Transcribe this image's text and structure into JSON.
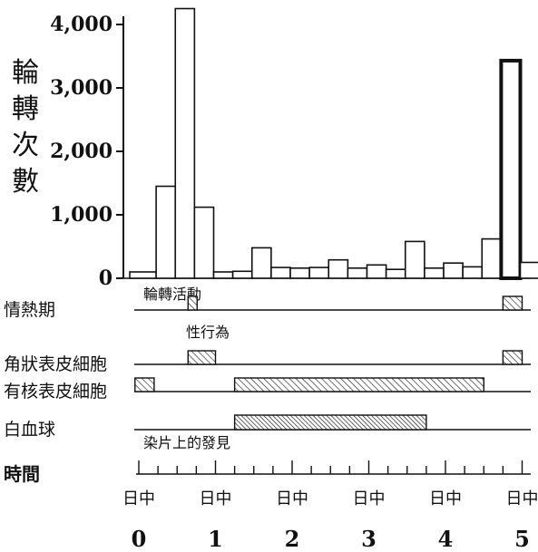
{
  "chart_data": {
    "type": "bar",
    "ylabel": "輪轉次數",
    "yticks": [
      "4,000",
      "3,000",
      "2,000",
      "1,000",
      "0"
    ],
    "ylim": [
      0,
      4000
    ],
    "x_unit_label": "日中",
    "x_tick_labels": [
      "0",
      "1",
      "2",
      "3",
      "4",
      "5"
    ],
    "x_range_days": [
      0,
      5
    ],
    "bar_width_days": 0.25,
    "activity_label": "輪轉活動",
    "bars": [
      {
        "start": 0.0,
        "value": 100
      },
      {
        "start": 0.25,
        "value": 1450
      },
      {
        "start": 0.5,
        "value": 4250
      },
      {
        "start": 0.75,
        "value": 1120
      },
      {
        "start": 1.0,
        "value": 100
      },
      {
        "start": 1.25,
        "value": 110
      },
      {
        "start": 1.5,
        "value": 480
      },
      {
        "start": 1.75,
        "value": 170
      },
      {
        "start": 2.0,
        "value": 160
      },
      {
        "start": 2.25,
        "value": 170
      },
      {
        "start": 2.5,
        "value": 290
      },
      {
        "start": 2.75,
        "value": 160
      },
      {
        "start": 3.0,
        "value": 210
      },
      {
        "start": 3.25,
        "value": 140
      },
      {
        "start": 3.5,
        "value": 580
      },
      {
        "start": 3.75,
        "value": 160
      },
      {
        "start": 4.0,
        "value": 240
      },
      {
        "start": 4.25,
        "value": 180
      },
      {
        "start": 4.5,
        "value": 620
      },
      {
        "start": 4.75,
        "value": 3430
      },
      {
        "start": 5.0,
        "value": 250
      }
    ],
    "rows": [
      {
        "label": "情熱期",
        "segments": [
          [
            0.5,
            0.75
          ],
          [
            4.75,
            5.0
          ]
        ],
        "note": "性行為",
        "style": "hatch"
      },
      {
        "label": "角狀表皮細胞",
        "segments": [
          [
            0.5,
            1.0
          ],
          [
            4.75,
            5.0
          ]
        ],
        "note": "",
        "style": "hatch"
      },
      {
        "label": "有核表皮細胞",
        "segments": [
          [
            -0.05,
            0.2
          ],
          [
            1.25,
            4.5
          ]
        ],
        "note": "",
        "style": "hatch"
      },
      {
        "label": "白血球",
        "segments": [
          [
            1.25,
            3.75
          ]
        ],
        "note": "染片上的發見",
        "style": "dense"
      }
    ],
    "time_label": "時間"
  }
}
